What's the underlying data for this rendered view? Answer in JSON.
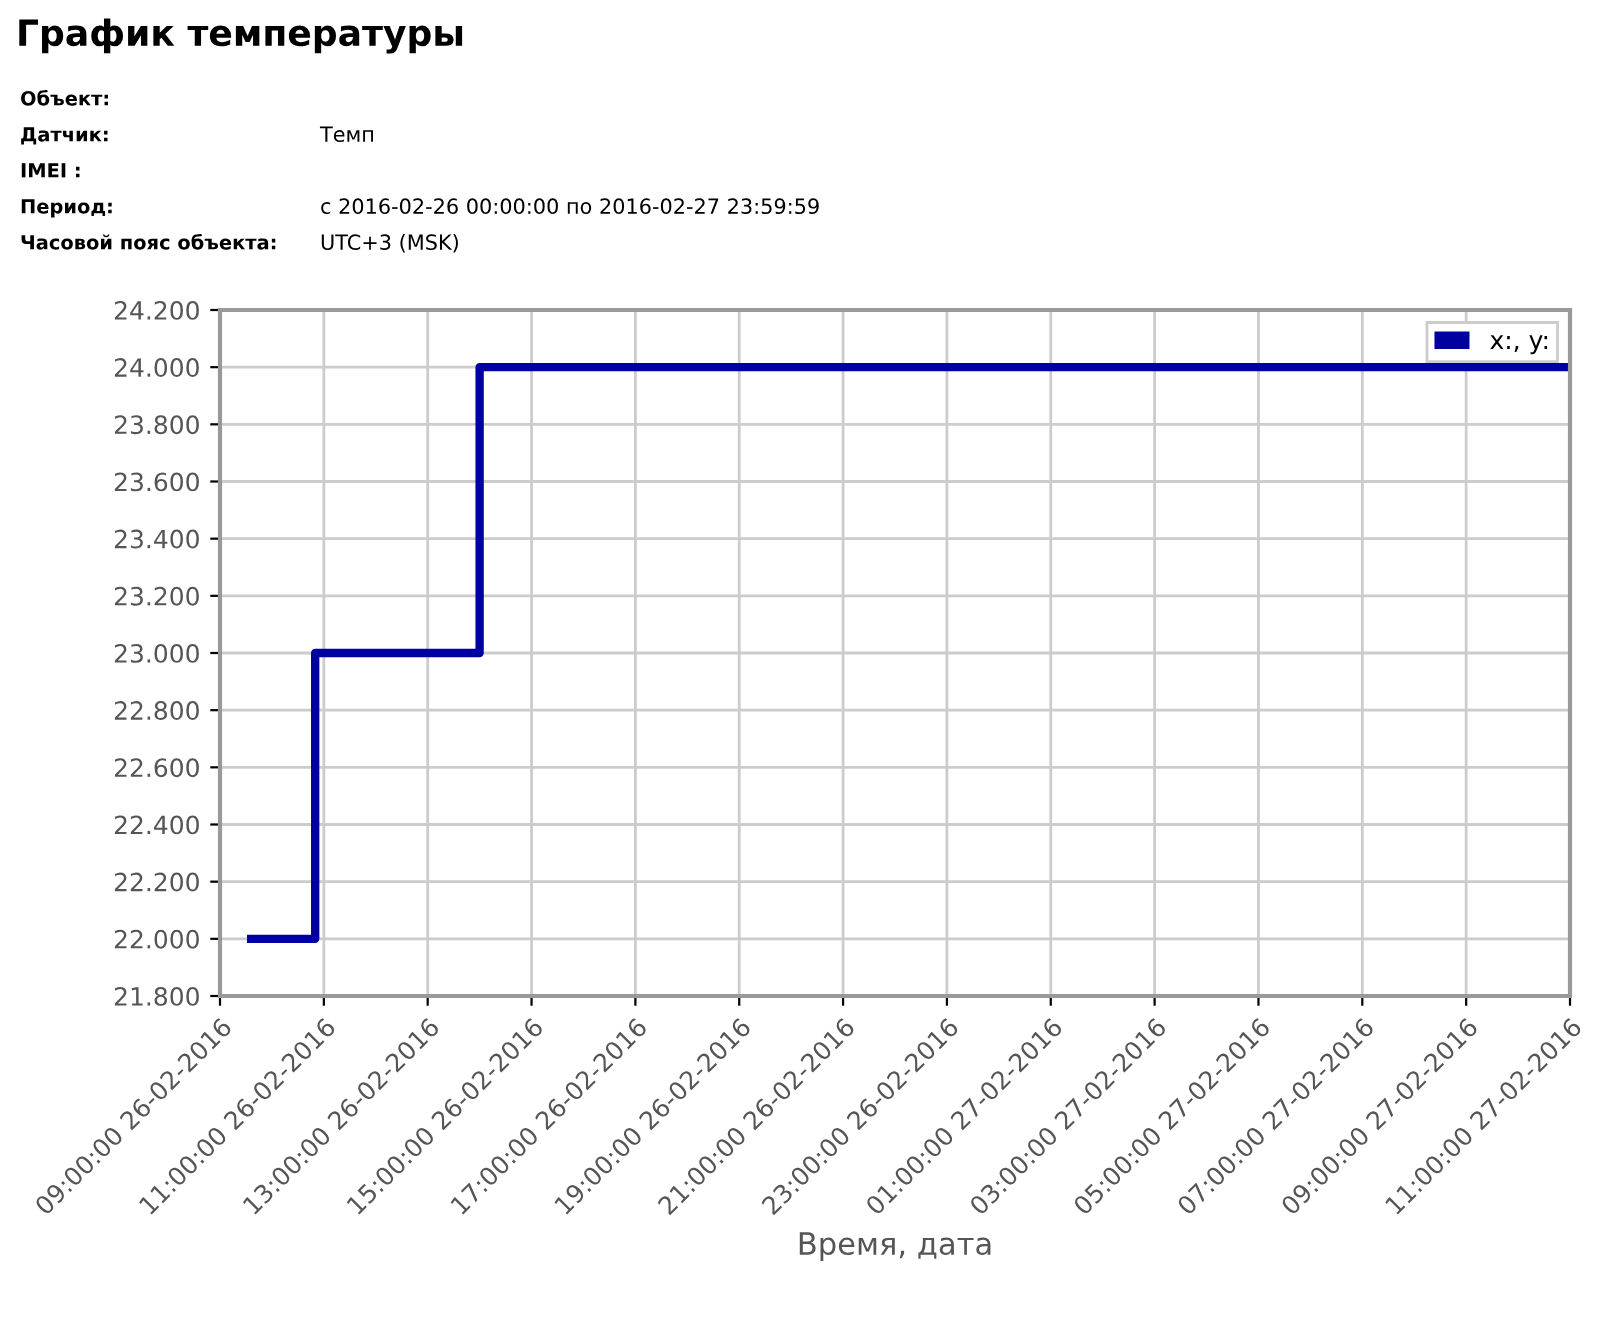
{
  "chart_data": {
    "type": "step",
    "title": "График температуры",
    "annotations": [
      "Объект:",
      "Датчик:\tТемп",
      "IMEI :",
      "Период:\tс 2016-02-26 00:00:00 по 2016-02-27 23:59:59",
      "Часовой пояс объекта:\tUTC+3 (MSK)"
    ],
    "xlabel": "Время, дата",
    "x": [
      "2016-02-26T09:36",
      "2016-02-26T10:50",
      "2016-02-26T14:00",
      "2016-02-26T21:13",
      "2016-02-27T11:00"
    ],
    "series": [
      {
        "name": "x:, y:",
        "color": "#0000a0",
        "values": [
          22.0,
          23.0,
          24.0,
          24.0,
          24.0
        ]
      }
    ],
    "xlim": [
      "2016-02-26T09:00",
      "2016-02-27T11:00"
    ],
    "xticks": [
      {
        "value": "2016-02-26T09:00",
        "label": "09:00:00 26-02-2016"
      },
      {
        "value": "2016-02-26T11:00",
        "label": "11:00:00 26-02-2016"
      },
      {
        "value": "2016-02-26T13:00",
        "label": "13:00:00 26-02-2016"
      },
      {
        "value": "2016-02-26T15:00",
        "label": "15:00:00 26-02-2016"
      },
      {
        "value": "2016-02-26T17:00",
        "label": "17:00:00 26-02-2016"
      },
      {
        "value": "2016-02-26T19:00",
        "label": "19:00:00 26-02-2016"
      },
      {
        "value": "2016-02-26T21:00",
        "label": "21:00:00 26-02-2016"
      },
      {
        "value": "2016-02-26T23:00",
        "label": "23:00:00 26-02-2016"
      },
      {
        "value": "2016-02-27T01:00",
        "label": "01:00:00 27-02-2016"
      },
      {
        "value": "2016-02-27T03:00",
        "label": "03:00:00 27-02-2016"
      },
      {
        "value": "2016-02-27T05:00",
        "label": "05:00:00 27-02-2016"
      },
      {
        "value": "2016-02-27T07:00",
        "label": "07:00:00 27-02-2016"
      },
      {
        "value": "2016-02-27T09:00",
        "label": "09:00:00 27-02-2016"
      },
      {
        "value": "2016-02-27T11:00",
        "label": "11:00:00 27-02-2016"
      }
    ],
    "ylim": [
      21.8,
      24.2
    ],
    "yticks": [
      {
        "value": 21.8,
        "label": "21.800"
      },
      {
        "value": 22.0,
        "label": "22.000"
      },
      {
        "value": 22.2,
        "label": "22.200"
      },
      {
        "value": 22.4,
        "label": "22.400"
      },
      {
        "value": 22.6,
        "label": "22.600"
      },
      {
        "value": 22.8,
        "label": "22.800"
      },
      {
        "value": 23.0,
        "label": "23.000"
      },
      {
        "value": 23.2,
        "label": "23.200"
      },
      {
        "value": 23.4,
        "label": "23.400"
      },
      {
        "value": 23.6,
        "label": "23.600"
      },
      {
        "value": 23.8,
        "label": "23.800"
      },
      {
        "value": 24.0,
        "label": "24.000"
      },
      {
        "value": 24.2,
        "label": "24.200"
      }
    ],
    "grid": true,
    "legend": "top right",
    "marker": "none",
    "line_style": "solid"
  }
}
